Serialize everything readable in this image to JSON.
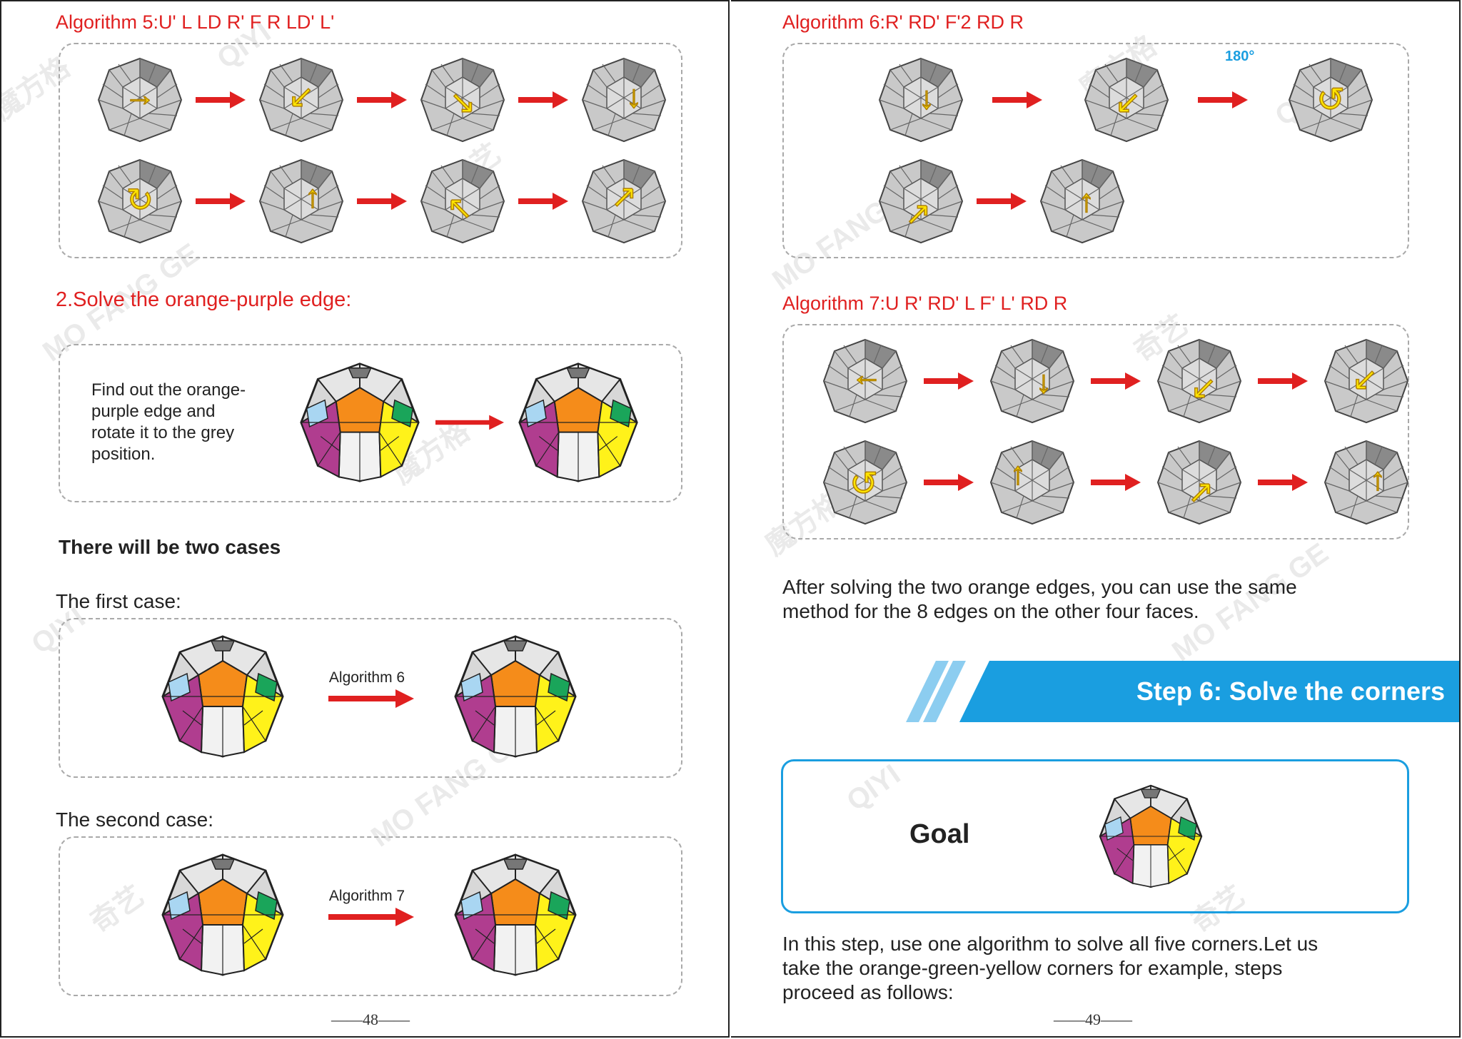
{
  "left_page": {
    "algorithm5_title": "Algorithm 5:U'  L  LD  R'  F  R  LD'  L'",
    "section2_title": "2.Solve the orange-purple edge:",
    "instruction": [
      "Find out the orange-",
      "purple edge and",
      "rotate it to the grey",
      "position."
    ],
    "cases_title": "There will be two cases",
    "first_case": {
      "label": "The first case:",
      "algorithm": "Algorithm 6"
    },
    "second_case": {
      "label": "The second case:",
      "algorithm": "Algorithm 7"
    },
    "page_number": "——48——"
  },
  "right_page": {
    "algorithm6_title": "Algorithm 6:R'  RD'  F'2  RD  R",
    "rotation_label": "180°",
    "algorithm7_title": "Algorithm 7:U  R'  RD'  L  F'  L'  RD  R",
    "after_text": [
      "After solving the two orange edges, you can use the same",
      "method for the 8 edges on the other four faces."
    ],
    "step_title": "Step 6: Solve the corners",
    "goal_label": "Goal",
    "step_text": [
      "In this step, use one algorithm to solve all five corners.Let us",
      "take the orange-green-yellow corners for example, steps",
      "proceed as follows:"
    ],
    "page_number": "——49——"
  },
  "watermark": {
    "brand_cn": "魔方格",
    "brand_cn2": "奇艺",
    "brand_en": "QIYI",
    "brand_pinyin": "MO FANG GE"
  },
  "colors": {
    "heading_red": "#e02020",
    "accent_blue": "#1a9ee0",
    "arrow_yellow": "#ffe500",
    "orange": "#f58c1a",
    "purple": "#b03d8f",
    "yellow": "#fff21a",
    "green": "#1aa55a",
    "light_blue": "#a9d6f2"
  },
  "icons": {
    "alg5_row1": [
      "arrow-right",
      "arrow-down-left",
      "arrow-down-right",
      "arrow-down"
    ],
    "alg5_row2": [
      "rotate-clockwise",
      "arrow-up",
      "arrow-up-left",
      "arrow-up-right"
    ],
    "alg6_row1": [
      "arrow-down",
      "arrow-down-left",
      "rotate-180"
    ],
    "alg6_row2": [
      "arrow-up-right",
      "arrow-up"
    ],
    "alg7_row1": [
      "arrow-left",
      "arrow-down",
      "arrow-down-left",
      "arrow-down-left"
    ],
    "alg7_row2": [
      "rotate-counterclockwise",
      "arrow-up",
      "arrow-up-right",
      "arrow-up"
    ]
  }
}
